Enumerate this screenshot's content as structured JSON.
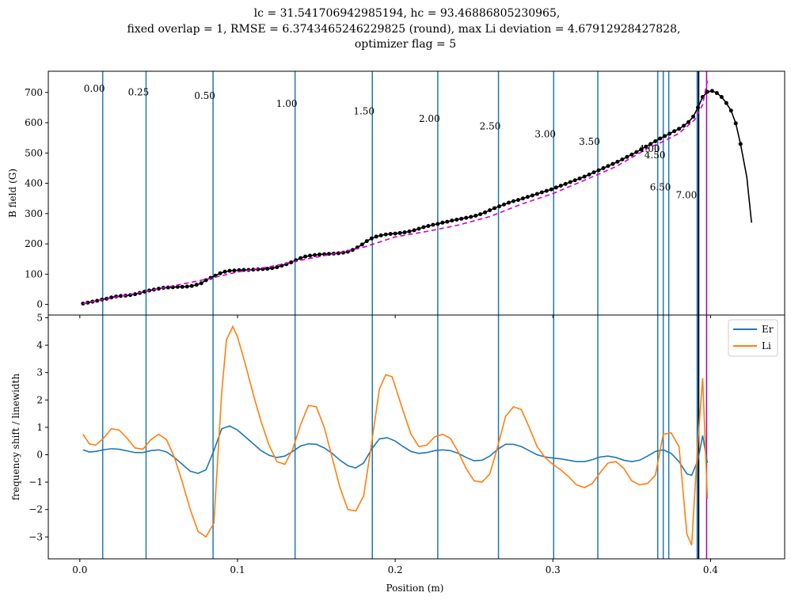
{
  "chart_data": [
    {
      "type": "line",
      "title_lines": [
        "lc = 31.541706942985194, hc = 93.46886805230965,",
        "fixed overlap = 1, RMSE = 6.3743465246229825 (round), max Li deviation = 4.67912928427828,",
        "optimizer flag = 5"
      ],
      "ylabel": "B field (G)",
      "xlim": [
        -0.02,
        0.447
      ],
      "ylim": [
        -35,
        770
      ],
      "yticks": [
        0,
        100,
        200,
        300,
        400,
        500,
        600,
        700
      ],
      "colors": {
        "measured": "#000000",
        "fit": "#cc00cc",
        "vlines": "#1f77b4",
        "black_vline": "#000000",
        "magenta_vline": "#aa00aa"
      },
      "vlines": [
        0.0145,
        0.042,
        0.0845,
        0.1365,
        0.1855,
        0.227,
        0.2655,
        0.3005,
        0.3285,
        0.3665,
        0.37,
        0.3735,
        0.3915,
        0.392
      ],
      "black_vline": 0.3925,
      "magenta_vline": 0.3975,
      "annotations": [
        {
          "text": "0.00",
          "x": 0.0025,
          "y": 702
        },
        {
          "text": "0.25",
          "x": 0.0305,
          "y": 690
        },
        {
          "text": "0.50",
          "x": 0.0725,
          "y": 679
        },
        {
          "text": "1.00",
          "x": 0.1245,
          "y": 653
        },
        {
          "text": "1.50",
          "x": 0.1735,
          "y": 628
        },
        {
          "text": "2.00",
          "x": 0.215,
          "y": 603
        },
        {
          "text": "2.50",
          "x": 0.2535,
          "y": 578
        },
        {
          "text": "3.00",
          "x": 0.2885,
          "y": 552
        },
        {
          "text": "3.50",
          "x": 0.3165,
          "y": 527
        },
        {
          "text": "4.00",
          "x": 0.3545,
          "y": 503
        },
        {
          "text": "4.50",
          "x": 0.358,
          "y": 482
        },
        {
          "text": "6.50",
          "x": 0.3615,
          "y": 376
        },
        {
          "text": "7.00",
          "x": 0.378,
          "y": 351
        }
      ],
      "series": [
        {
          "name": "",
          "style": "points+line",
          "x": [
            0.002,
            0.005,
            0.008,
            0.011,
            0.014,
            0.017,
            0.02,
            0.023,
            0.026,
            0.029,
            0.032,
            0.035,
            0.038,
            0.041,
            0.044,
            0.047,
            0.05,
            0.053,
            0.056,
            0.059,
            0.062,
            0.065,
            0.068,
            0.071,
            0.074,
            0.077,
            0.08,
            0.083,
            0.086,
            0.089,
            0.092,
            0.095,
            0.098,
            0.101,
            0.104,
            0.107,
            0.11,
            0.113,
            0.116,
            0.119,
            0.122,
            0.125,
            0.128,
            0.131,
            0.134,
            0.137,
            0.14,
            0.143,
            0.146,
            0.149,
            0.152,
            0.155,
            0.158,
            0.161,
            0.164,
            0.167,
            0.17,
            0.173,
            0.176,
            0.179,
            0.182,
            0.185,
            0.188,
            0.191,
            0.194,
            0.197,
            0.2,
            0.203,
            0.206,
            0.209,
            0.212,
            0.215,
            0.218,
            0.221,
            0.224,
            0.227,
            0.23,
            0.233,
            0.236,
            0.239,
            0.242,
            0.245,
            0.248,
            0.251,
            0.254,
            0.257,
            0.26,
            0.263,
            0.266,
            0.269,
            0.272,
            0.275,
            0.278,
            0.281,
            0.284,
            0.287,
            0.29,
            0.293,
            0.296,
            0.299,
            0.302,
            0.305,
            0.308,
            0.311,
            0.314,
            0.317,
            0.32,
            0.323,
            0.326,
            0.329,
            0.332,
            0.335,
            0.338,
            0.341,
            0.344,
            0.347,
            0.35,
            0.353,
            0.356,
            0.359,
            0.362,
            0.365,
            0.368,
            0.371,
            0.374,
            0.377,
            0.38,
            0.383,
            0.386,
            0.389,
            0.392,
            0.395,
            0.398,
            0.401,
            0.404,
            0.407,
            0.41,
            0.413,
            0.416,
            0.419,
            0.423,
            0.426
          ],
          "y": [
            3,
            6,
            9,
            12,
            16,
            19,
            23,
            26,
            28,
            29,
            31,
            34,
            38,
            42,
            46,
            49,
            52,
            55,
            56,
            57,
            58,
            58,
            59,
            61,
            65,
            70,
            80,
            88,
            95,
            103,
            108,
            111,
            112,
            113,
            114,
            114,
            115,
            116,
            117,
            118,
            120,
            123,
            128,
            133,
            139,
            146,
            153,
            158,
            161,
            163,
            165,
            166,
            167,
            168,
            169,
            171,
            174,
            180,
            188,
            198,
            209,
            218,
            224,
            228,
            231,
            233,
            234,
            236,
            238,
            241,
            245,
            250,
            255,
            259,
            263,
            266,
            270,
            273,
            277,
            280,
            283,
            286,
            289,
            293,
            298,
            304,
            311,
            318,
            324,
            330,
            336,
            341,
            345,
            350,
            355,
            360,
            365,
            370,
            375,
            380,
            386,
            392,
            398,
            404,
            410,
            416,
            422,
            429,
            436,
            443,
            450,
            457,
            464,
            471,
            479,
            487,
            495,
            503,
            512,
            521,
            530,
            539,
            548,
            556,
            564,
            572,
            580,
            590,
            602,
            620,
            650,
            685,
            702,
            705,
            698,
            685,
            665,
            640,
            598,
            530,
            420,
            270
          ]
        },
        {
          "name": "",
          "style": "dashed",
          "x": [
            0.002,
            0.02,
            0.04,
            0.06,
            0.08,
            0.1,
            0.12,
            0.14,
            0.16,
            0.18,
            0.2,
            0.22,
            0.24,
            0.26,
            0.28,
            0.3,
            0.32,
            0.34,
            0.36,
            0.37,
            0.38,
            0.39,
            0.395,
            0.398
          ],
          "y": [
            3,
            21,
            41,
            62,
            83,
            107,
            124,
            146,
            166,
            189,
            223,
            241,
            262,
            290,
            331,
            366,
            410,
            455,
            515,
            538,
            565,
            610,
            660,
            740
          ]
        }
      ]
    },
    {
      "type": "line",
      "xlabel": "Position (m)",
      "ylabel": "frequency shift / linewidth",
      "xlim": [
        -0.02,
        0.447
      ],
      "ylim": [
        -3.8,
        5.1
      ],
      "yticks": [
        -3,
        -2,
        -1,
        0,
        1,
        2,
        3,
        4,
        5
      ],
      "xticks": [
        0.0,
        0.1,
        0.2,
        0.3,
        0.4
      ],
      "xtick_labels": [
        "0.0",
        "0.1",
        "0.2",
        "0.3",
        "0.4"
      ],
      "legend": {
        "placement": "top-right",
        "entries": [
          "Er",
          "Li"
        ]
      },
      "series": [
        {
          "name": "Er",
          "color": "#1f77b4",
          "x": [
            0.002,
            0.006,
            0.01,
            0.015,
            0.02,
            0.025,
            0.03,
            0.035,
            0.04,
            0.045,
            0.05,
            0.055,
            0.06,
            0.065,
            0.07,
            0.075,
            0.08,
            0.085,
            0.09,
            0.095,
            0.1,
            0.105,
            0.11,
            0.115,
            0.12,
            0.125,
            0.13,
            0.135,
            0.14,
            0.145,
            0.15,
            0.155,
            0.16,
            0.165,
            0.17,
            0.175,
            0.18,
            0.185,
            0.19,
            0.195,
            0.2,
            0.205,
            0.21,
            0.215,
            0.22,
            0.225,
            0.23,
            0.235,
            0.24,
            0.245,
            0.25,
            0.255,
            0.26,
            0.265,
            0.27,
            0.275,
            0.28,
            0.285,
            0.29,
            0.295,
            0.3,
            0.305,
            0.31,
            0.315,
            0.32,
            0.325,
            0.33,
            0.335,
            0.34,
            0.345,
            0.35,
            0.355,
            0.36,
            0.365,
            0.37,
            0.375,
            0.38,
            0.385,
            0.388,
            0.392,
            0.395,
            0.398
          ],
          "y": [
            0.18,
            0.1,
            0.12,
            0.18,
            0.22,
            0.2,
            0.14,
            0.08,
            0.08,
            0.15,
            0.18,
            0.1,
            -0.1,
            -0.35,
            -0.6,
            -0.68,
            -0.55,
            0.15,
            0.95,
            1.05,
            0.9,
            0.65,
            0.4,
            0.15,
            -0.02,
            -0.1,
            -0.05,
            0.12,
            0.32,
            0.4,
            0.38,
            0.25,
            0.05,
            -0.2,
            -0.4,
            -0.48,
            -0.3,
            0.2,
            0.58,
            0.62,
            0.5,
            0.3,
            0.12,
            0.05,
            0.08,
            0.15,
            0.18,
            0.15,
            0.05,
            -0.1,
            -0.22,
            -0.2,
            -0.05,
            0.2,
            0.38,
            0.38,
            0.3,
            0.15,
            0.0,
            -0.08,
            -0.12,
            -0.15,
            -0.2,
            -0.25,
            -0.25,
            -0.18,
            -0.08,
            -0.05,
            -0.1,
            -0.2,
            -0.25,
            -0.2,
            -0.05,
            0.12,
            0.18,
            0.05,
            -0.25,
            -0.7,
            -0.75,
            -0.2,
            0.7,
            -0.3
          ]
        },
        {
          "name": "Li",
          "color": "#ff7f0e",
          "x": [
            0.002,
            0.006,
            0.01,
            0.015,
            0.02,
            0.025,
            0.03,
            0.035,
            0.04,
            0.045,
            0.05,
            0.055,
            0.06,
            0.065,
            0.07,
            0.075,
            0.08,
            0.085,
            0.09,
            0.093,
            0.097,
            0.1,
            0.105,
            0.11,
            0.115,
            0.12,
            0.125,
            0.13,
            0.135,
            0.14,
            0.145,
            0.15,
            0.155,
            0.16,
            0.165,
            0.17,
            0.175,
            0.18,
            0.185,
            0.19,
            0.194,
            0.198,
            0.2,
            0.205,
            0.21,
            0.215,
            0.22,
            0.225,
            0.23,
            0.235,
            0.24,
            0.245,
            0.25,
            0.255,
            0.26,
            0.265,
            0.27,
            0.275,
            0.28,
            0.285,
            0.29,
            0.295,
            0.3,
            0.305,
            0.31,
            0.315,
            0.32,
            0.325,
            0.33,
            0.335,
            0.34,
            0.345,
            0.35,
            0.355,
            0.36,
            0.365,
            0.37,
            0.375,
            0.38,
            0.385,
            0.388,
            0.392,
            0.395,
            0.398
          ],
          "y": [
            0.75,
            0.4,
            0.35,
            0.6,
            0.95,
            0.9,
            0.6,
            0.25,
            0.2,
            0.55,
            0.75,
            0.55,
            -0.1,
            -1.0,
            -2.0,
            -2.8,
            -3.0,
            -2.5,
            2.3,
            4.2,
            4.68,
            4.3,
            3.3,
            2.2,
            1.2,
            0.35,
            -0.25,
            -0.35,
            0.2,
            1.1,
            1.8,
            1.75,
            1.0,
            -0.1,
            -1.2,
            -2.0,
            -2.05,
            -1.5,
            0.4,
            2.4,
            2.92,
            2.85,
            2.5,
            1.6,
            0.75,
            0.3,
            0.35,
            0.65,
            0.75,
            0.6,
            0.1,
            -0.5,
            -0.95,
            -1.0,
            -0.7,
            0.3,
            1.4,
            1.75,
            1.65,
            1.0,
            0.3,
            -0.1,
            -0.35,
            -0.55,
            -0.8,
            -1.1,
            -1.2,
            -1.05,
            -0.65,
            -0.3,
            -0.25,
            -0.5,
            -0.95,
            -1.1,
            -1.05,
            -0.75,
            0.75,
            0.8,
            0.3,
            -2.9,
            -3.3,
            0.5,
            2.8,
            -1.6
          ]
        }
      ],
      "vlines": [
        0.0145,
        0.042,
        0.0845,
        0.1365,
        0.1855,
        0.227,
        0.2655,
        0.3005,
        0.3285,
        0.3665,
        0.37,
        0.3735,
        0.3915,
        0.392
      ],
      "black_vline": 0.3925,
      "magenta_vline": 0.3975
    }
  ]
}
